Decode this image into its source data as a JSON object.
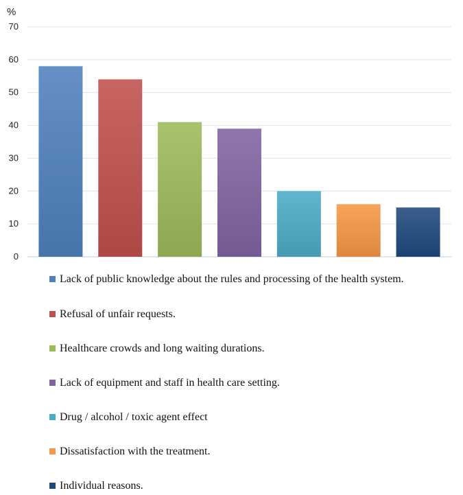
{
  "chart_data": {
    "type": "bar",
    "y_unit_label": "%",
    "ylim": [
      0,
      70
    ],
    "yticks": [
      0,
      10,
      20,
      30,
      40,
      50,
      60,
      70
    ],
    "grid": true,
    "legend_position": "bottom",
    "series": [
      {
        "name": "Lack of public knowledge about the rules and processing of the health system.",
        "value": 58,
        "color": "#4f81bd"
      },
      {
        "name": "Refusal of unfair requests.",
        "value": 54,
        "color": "#c0504d"
      },
      {
        "name": "Healthcare crowds and long waiting durations.",
        "value": 41,
        "color": "#9bbb59"
      },
      {
        "name": "Lack of equipment and staff in health care setting.",
        "value": 39,
        "color": "#8064a2"
      },
      {
        "name": "Drug / alcohol / toxic agent effect",
        "value": 20,
        "color": "#4bacc6"
      },
      {
        "name": "Dissatisfaction with the treatment.",
        "value": 16,
        "color": "#f79646"
      },
      {
        "name": "Individual reasons.",
        "value": 15,
        "color": "#1f497d"
      }
    ]
  }
}
